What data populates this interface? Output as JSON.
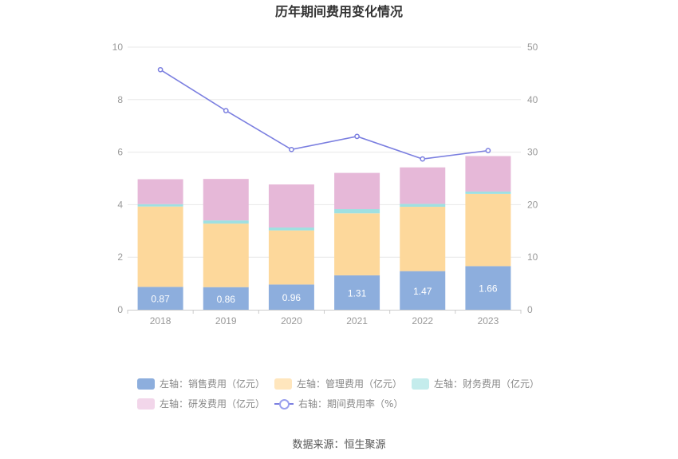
{
  "chart_data": {
    "type": "bar",
    "title": "历年期间费用变化情况",
    "categories": [
      "2018",
      "2019",
      "2020",
      "2021",
      "2022",
      "2023"
    ],
    "stacked": true,
    "ylim_left": [
      0,
      10
    ],
    "ylim_right": [
      0,
      50
    ],
    "yticks_left": [
      "0",
      "2",
      "4",
      "6",
      "8",
      "10"
    ],
    "yticks_right": [
      "0",
      "10",
      "20",
      "30",
      "40",
      "50"
    ],
    "grid": true,
    "legend_position": "bottom",
    "series": [
      {
        "name": "左轴：销售费用（亿元）",
        "axis": "left",
        "color": "#8daedd",
        "values": [
          0.87,
          0.86,
          0.96,
          1.31,
          1.47,
          1.66
        ],
        "labels": [
          "0.87",
          "0.86",
          "0.96",
          "1.31",
          "1.47",
          "1.66"
        ]
      },
      {
        "name": "左轴：管理费用（亿元）",
        "axis": "left",
        "color": "#fdd89b",
        "values": [
          3.06,
          2.42,
          2.06,
          2.36,
          2.45,
          2.75
        ]
      },
      {
        "name": "左轴：财务费用（亿元）",
        "axis": "left",
        "color": "#9fe0e1",
        "values": [
          0.09,
          0.12,
          0.11,
          0.16,
          0.11,
          0.09
        ]
      },
      {
        "name": "左轴：研发费用（亿元）",
        "axis": "left",
        "color": "#e6b8d8",
        "values": [
          0.95,
          1.58,
          1.64,
          1.38,
          1.39,
          1.35
        ]
      },
      {
        "name": "右轴：期间费用率（%）",
        "axis": "right",
        "type": "line",
        "color": "#7b7fe0",
        "values": [
          45.7,
          37.9,
          30.5,
          33.0,
          28.7,
          30.3
        ]
      }
    ],
    "source": "数据来源：恒生聚源"
  }
}
